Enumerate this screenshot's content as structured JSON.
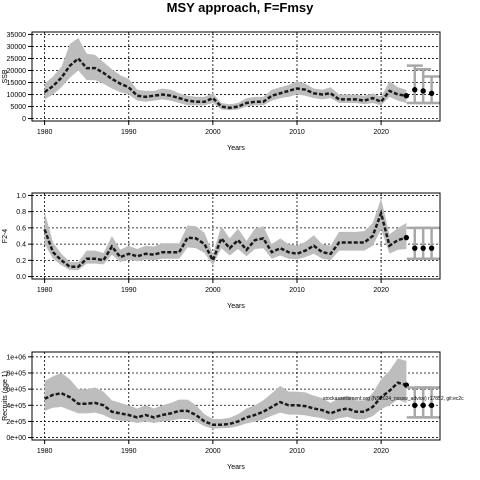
{
  "page": {
    "title": "MSY approach, F=Fmsy"
  },
  "chart_data": [
    {
      "type": "line",
      "title": "",
      "xlabel": "Years",
      "ylabel": "SSB",
      "xlim": [
        1978.5,
        2027
      ],
      "ylim": [
        -1000,
        36000
      ],
      "x_ticks": [
        1980,
        1990,
        2000,
        2010,
        2020
      ],
      "x_tick_labels": [
        "1980",
        "1990",
        "2000",
        "2010",
        "2020"
      ],
      "y_ticks": [
        0,
        5000,
        10000,
        15000,
        20000,
        25000,
        30000,
        35000
      ],
      "y_tick_labels": [
        "0",
        "5000",
        "10000",
        "15000",
        "20000",
        "25000",
        "30000",
        "35000"
      ],
      "grid": true,
      "series": [
        {
          "role": "estimate",
          "style": "dashed-with-interval",
          "x": [
            1980,
            1981,
            1982,
            1983,
            1984,
            1985,
            1986,
            1987,
            1988,
            1989,
            1990,
            1991,
            1992,
            1993,
            1994,
            1995,
            1996,
            1997,
            1998,
            1999,
            2000,
            2001,
            2002,
            2003,
            2004,
            2005,
            2006,
            2007,
            2008,
            2009,
            2010,
            2011,
            2012,
            2013,
            2014,
            2015,
            2016,
            2017,
            2018,
            2019,
            2020,
            2021,
            2022,
            2023
          ],
          "y": [
            11000,
            13500,
            17000,
            22000,
            25000,
            21000,
            21000,
            19000,
            16500,
            14500,
            13000,
            9500,
            9000,
            9500,
            10000,
            9500,
            8500,
            7500,
            7000,
            7000,
            8500,
            5000,
            4500,
            5000,
            6500,
            7000,
            7000,
            9500,
            10500,
            11500,
            12500,
            12000,
            10500,
            10000,
            10500,
            8000,
            8000,
            8000,
            7500,
            8500,
            7000,
            11500,
            10000,
            9500
          ],
          "lower": [
            8000,
            10000,
            13000,
            17000,
            20000,
            16000,
            16000,
            14500,
            12500,
            11000,
            10000,
            7500,
            7000,
            7500,
            8000,
            7500,
            6500,
            5500,
            5500,
            5500,
            6500,
            3800,
            3500,
            3800,
            5000,
            5500,
            5500,
            7500,
            8500,
            9000,
            10000,
            9500,
            8500,
            8000,
            8500,
            6500,
            6500,
            6500,
            6000,
            6500,
            5500,
            9000,
            7500,
            6500
          ],
          "upper": [
            14500,
            17500,
            21500,
            31000,
            33500,
            27000,
            26500,
            23500,
            20500,
            18000,
            16500,
            12000,
            11500,
            11500,
            12500,
            12000,
            10500,
            9500,
            9000,
            9000,
            10500,
            6500,
            6000,
            6500,
            8500,
            9000,
            9000,
            12000,
            13000,
            14000,
            15500,
            14500,
            12500,
            12000,
            13000,
            10000,
            10000,
            10000,
            9500,
            10500,
            9000,
            15500,
            13000,
            12000
          ]
        },
        {
          "role": "projection",
          "style": "points-with-error-bars",
          "x": [
            2024,
            2025,
            2026
          ],
          "y": [
            12000,
            11500,
            10500
          ],
          "lower": [
            6500,
            6500,
            6500
          ],
          "upper": [
            22000,
            20500,
            17500
          ]
        }
      ]
    },
    {
      "type": "line",
      "title": "",
      "xlabel": "Years",
      "ylabel": "F2-4",
      "xlim": [
        1978.5,
        2027
      ],
      "ylim": [
        -0.03,
        1.03
      ],
      "x_ticks": [
        1980,
        1990,
        2000,
        2010,
        2020
      ],
      "x_tick_labels": [
        "1980",
        "1990",
        "2000",
        "2010",
        "2020"
      ],
      "y_ticks": [
        0,
        0.2,
        0.4,
        0.6,
        0.8,
        1.0
      ],
      "y_tick_labels": [
        "0.0",
        "0.2",
        "0.4",
        "0.6",
        "0.8",
        "1.0"
      ],
      "grid": true,
      "series": [
        {
          "role": "estimate",
          "style": "dashed-with-interval",
          "x": [
            1980,
            1981,
            1982,
            1983,
            1984,
            1985,
            1986,
            1987,
            1988,
            1989,
            1990,
            1991,
            1992,
            1993,
            1994,
            1995,
            1996,
            1997,
            1998,
            1999,
            2000,
            2001,
            2002,
            2003,
            2004,
            2005,
            2006,
            2007,
            2008,
            2009,
            2010,
            2011,
            2012,
            2013,
            2014,
            2015,
            2016,
            2017,
            2018,
            2019,
            2020,
            2021,
            2022,
            2023
          ],
          "y": [
            0.58,
            0.3,
            0.2,
            0.12,
            0.12,
            0.22,
            0.22,
            0.2,
            0.37,
            0.24,
            0.28,
            0.25,
            0.28,
            0.27,
            0.3,
            0.3,
            0.3,
            0.48,
            0.47,
            0.4,
            0.2,
            0.47,
            0.35,
            0.45,
            0.33,
            0.45,
            0.47,
            0.3,
            0.35,
            0.3,
            0.28,
            0.32,
            0.38,
            0.3,
            0.28,
            0.42,
            0.42,
            0.42,
            0.42,
            0.5,
            0.78,
            0.38,
            0.45,
            0.48
          ],
          "lower": [
            0.4,
            0.22,
            0.14,
            0.08,
            0.08,
            0.16,
            0.16,
            0.15,
            0.27,
            0.18,
            0.21,
            0.19,
            0.21,
            0.2,
            0.22,
            0.22,
            0.22,
            0.36,
            0.35,
            0.29,
            0.14,
            0.35,
            0.26,
            0.34,
            0.25,
            0.34,
            0.35,
            0.22,
            0.26,
            0.22,
            0.21,
            0.24,
            0.28,
            0.22,
            0.2,
            0.32,
            0.32,
            0.32,
            0.32,
            0.38,
            0.58,
            0.28,
            0.33,
            0.34
          ],
          "upper": [
            0.8,
            0.42,
            0.28,
            0.18,
            0.18,
            0.32,
            0.32,
            0.29,
            0.5,
            0.33,
            0.38,
            0.34,
            0.38,
            0.37,
            0.41,
            0.41,
            0.41,
            0.63,
            0.62,
            0.54,
            0.28,
            0.62,
            0.47,
            0.59,
            0.44,
            0.59,
            0.62,
            0.4,
            0.47,
            0.4,
            0.38,
            0.43,
            0.51,
            0.4,
            0.38,
            0.55,
            0.55,
            0.55,
            0.56,
            0.66,
            0.96,
            0.52,
            0.6,
            0.66
          ]
        },
        {
          "role": "projection",
          "style": "points-with-error-bars",
          "x": [
            2024,
            2025,
            2026
          ],
          "y": [
            0.35,
            0.35,
            0.35
          ],
          "lower": [
            0.22,
            0.22,
            0.22
          ],
          "upper": [
            0.6,
            0.6,
            0.6
          ]
        }
      ]
    },
    {
      "type": "line",
      "title": "",
      "xlabel": "Years",
      "ylabel": "Recruits (age 1)",
      "xlim": [
        1978.5,
        2027
      ],
      "ylim": [
        -30000,
        1060000
      ],
      "x_ticks": [
        1980,
        1990,
        2000,
        2010,
        2020
      ],
      "x_tick_labels": [
        "1980",
        "1990",
        "2000",
        "2010",
        "2020"
      ],
      "y_ticks": [
        0,
        200000,
        400000,
        600000,
        800000,
        1000000
      ],
      "y_tick_labels": [
        "0e+00",
        "2e+05",
        "4e+05",
        "6e+05",
        "8e+05",
        "1e+06"
      ],
      "grid": true,
      "annotation": "stockassessment.org (NS2024_nsssw_advice) r17852, git:ec2c",
      "series": [
        {
          "role": "estimate",
          "style": "dashed-with-interval",
          "x": [
            1980,
            1981,
            1982,
            1983,
            1984,
            1985,
            1986,
            1987,
            1988,
            1989,
            1990,
            1991,
            1992,
            1993,
            1994,
            1995,
            1996,
            1997,
            1998,
            1999,
            2000,
            2001,
            2002,
            2003,
            2004,
            2005,
            2006,
            2007,
            2008,
            2009,
            2010,
            2011,
            2012,
            2013,
            2014,
            2015,
            2016,
            2017,
            2018,
            2019,
            2020,
            2021,
            2022,
            2023
          ],
          "y": [
            480000,
            530000,
            550000,
            500000,
            420000,
            420000,
            430000,
            400000,
            320000,
            300000,
            280000,
            250000,
            280000,
            250000,
            280000,
            300000,
            330000,
            330000,
            280000,
            200000,
            160000,
            160000,
            170000,
            200000,
            250000,
            280000,
            320000,
            380000,
            440000,
            400000,
            400000,
            390000,
            360000,
            340000,
            300000,
            340000,
            360000,
            320000,
            320000,
            380000,
            500000,
            580000,
            680000,
            650000
          ],
          "lower": [
            330000,
            370000,
            380000,
            340000,
            300000,
            300000,
            310000,
            280000,
            230000,
            210000,
            200000,
            180000,
            200000,
            180000,
            200000,
            210000,
            230000,
            230000,
            200000,
            140000,
            110000,
            115000,
            120000,
            140000,
            175000,
            195000,
            225000,
            270000,
            310000,
            285000,
            285000,
            275000,
            255000,
            240000,
            210000,
            240000,
            255000,
            225000,
            225000,
            265000,
            350000,
            400000,
            470000,
            430000
          ],
          "upper": [
            700000,
            760000,
            800000,
            720000,
            600000,
            600000,
            620000,
            570000,
            460000,
            430000,
            400000,
            360000,
            400000,
            360000,
            400000,
            430000,
            470000,
            470000,
            400000,
            290000,
            230000,
            230000,
            245000,
            290000,
            360000,
            400000,
            460000,
            550000,
            640000,
            570000,
            570000,
            560000,
            520000,
            490000,
            430000,
            490000,
            520000,
            460000,
            460000,
            550000,
            720000,
            830000,
            980000,
            950000
          ]
        },
        {
          "role": "projection",
          "style": "points-with-error-bars",
          "x": [
            2024,
            2025,
            2026
          ],
          "y": [
            400000,
            400000,
            400000
          ],
          "lower": [
            250000,
            250000,
            250000
          ],
          "upper": [
            620000,
            620000,
            620000
          ]
        }
      ]
    }
  ]
}
